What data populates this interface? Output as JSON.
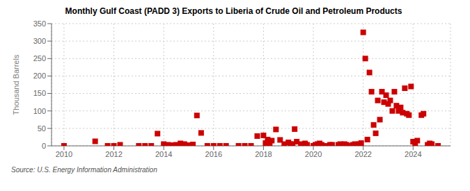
{
  "chart_data": {
    "type": "scatter",
    "title": "Monthly Gulf Coast (PADD 3) Exports to Liberia of Crude Oil and Petroleum Products",
    "y_label": "Thousand Barrels",
    "annotations": [
      "Source: U.S. Energy Information Administration"
    ],
    "color": "#cc0000",
    "marker": "square",
    "grid": true,
    "xlim": [
      2009.5,
      2025.5
    ],
    "ylim": [
      0,
      350
    ],
    "xticks": [
      2010,
      2012,
      2014,
      2016,
      2018,
      2020,
      2022,
      2024
    ],
    "yticks": [
      0,
      50,
      100,
      150,
      200,
      250,
      300,
      350
    ],
    "x": [
      2010.0,
      2011.25,
      2011.75,
      2012.0,
      2012.25,
      2013.0,
      2013.25,
      2013.5,
      2013.75,
      2014.0,
      2014.17,
      2014.33,
      2014.5,
      2014.67,
      2014.83,
      2015.0,
      2015.17,
      2015.33,
      2015.5,
      2015.75,
      2016.0,
      2016.25,
      2016.5,
      2017.0,
      2017.25,
      2017.5,
      2017.75,
      2018.0,
      2018.083,
      2018.167,
      2018.25,
      2018.333,
      2018.5,
      2018.667,
      2018.833,
      2019.0,
      2019.083,
      2019.167,
      2019.25,
      2019.333,
      2019.5,
      2019.667,
      2019.75,
      2020.0,
      2020.083,
      2020.167,
      2020.25,
      2020.333,
      2020.5,
      2020.667,
      2020.75,
      2021.0,
      2021.083,
      2021.167,
      2021.25,
      2021.333,
      2021.5,
      2021.583,
      2021.667,
      2021.75,
      2021.833,
      2021.917,
      2022.0,
      2022.083,
      2022.167,
      2022.25,
      2022.333,
      2022.417,
      2022.5,
      2022.583,
      2022.667,
      2022.75,
      2022.833,
      2022.917,
      2023.0,
      2023.083,
      2023.167,
      2023.25,
      2023.333,
      2023.417,
      2023.5,
      2023.583,
      2023.667,
      2023.75,
      2023.833,
      2023.917,
      2024.0,
      2024.083,
      2024.167,
      2024.333,
      2024.417,
      2024.583,
      2024.667,
      2024.75,
      2025.0
    ],
    "values": [
      0,
      13,
      0,
      0,
      3,
      0,
      0,
      0,
      35,
      5,
      3,
      2,
      3,
      7,
      5,
      2,
      4,
      87,
      37,
      0,
      0,
      0,
      0,
      0,
      0,
      0,
      28,
      30,
      8,
      18,
      5,
      15,
      47,
      17,
      5,
      10,
      5,
      5,
      48,
      12,
      5,
      7,
      3,
      0,
      3,
      5,
      7,
      3,
      0,
      3,
      3,
      3,
      5,
      3,
      5,
      3,
      0,
      3,
      5,
      3,
      5,
      8,
      325,
      250,
      18,
      210,
      155,
      60,
      36,
      130,
      75,
      155,
      125,
      145,
      120,
      130,
      100,
      155,
      115,
      100,
      110,
      95,
      165,
      92,
      88,
      170,
      12,
      5,
      15,
      88,
      92,
      3,
      7,
      5,
      0
    ]
  }
}
